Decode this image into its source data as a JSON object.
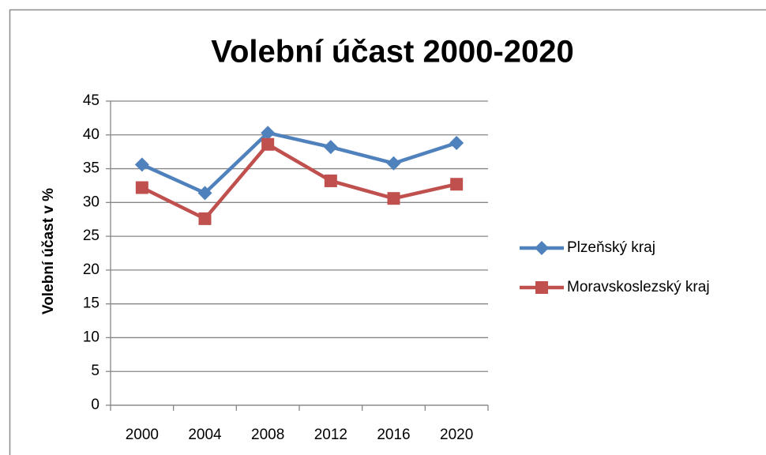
{
  "chart_data": {
    "type": "line",
    "title": "Volební účast 2000-2020",
    "y_label": "Volební účast v %",
    "categories": [
      "2000",
      "2004",
      "2008",
      "2012",
      "2016",
      "2020"
    ],
    "series": [
      {
        "name": "Plzeňský kraj",
        "color": "#4f81bd",
        "marker": "diamond",
        "values": [
          35.6,
          31.4,
          40.3,
          38.2,
          35.8,
          38.8
        ]
      },
      {
        "name": "Moravskoslezský kraj",
        "color": "#c0504d",
        "marker": "square",
        "values": [
          32.2,
          27.6,
          38.6,
          33.2,
          30.6,
          32.7
        ]
      }
    ],
    "ylim": [
      0,
      45
    ],
    "yticks": [
      0,
      5,
      10,
      15,
      20,
      25,
      30,
      35,
      40,
      45
    ],
    "grid": true,
    "legend": "right"
  }
}
